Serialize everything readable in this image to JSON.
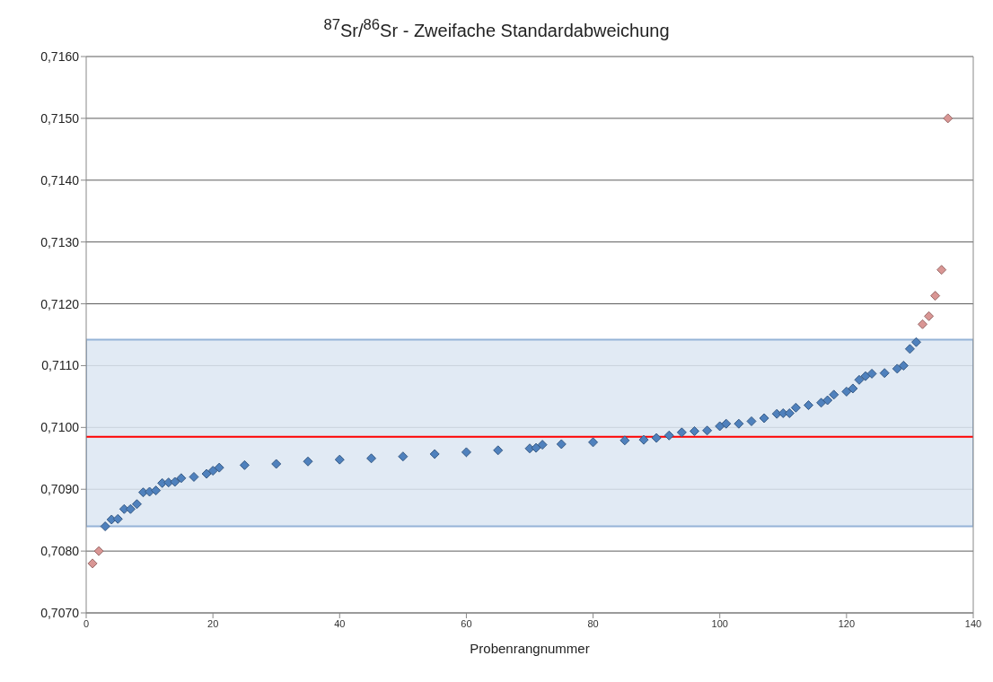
{
  "chart_data": {
    "type": "scatter",
    "title": "$^{87}$Sr/$^{86}$Sr - Zweifache Standardabweichung",
    "xlabel": "Probenrangnummer",
    "marker": "diamond",
    "grid": "y",
    "legend": false,
    "xlim": [
      0,
      140
    ],
    "xticks": [
      0,
      20,
      40,
      60,
      80,
      100,
      120,
      140
    ],
    "ylim": [
      0.707,
      0.716
    ],
    "yticks": [
      {
        "value": 0.707,
        "label": "0,7070"
      },
      {
        "value": 0.708,
        "label": "0,7080"
      },
      {
        "value": 0.709,
        "label": "0,7090"
      },
      {
        "value": 0.71,
        "label": "0,7100"
      },
      {
        "value": 0.711,
        "label": "0,7110"
      },
      {
        "value": 0.712,
        "label": "0,7120"
      },
      {
        "value": 0.713,
        "label": "0,7130"
      },
      {
        "value": 0.714,
        "label": "0,7140"
      },
      {
        "value": 0.715,
        "label": "0,7150"
      },
      {
        "value": 0.716,
        "label": "0,7160"
      }
    ],
    "bands": [
      {
        "axis": "y",
        "from": 0.7084,
        "to": 0.71142,
        "color": "#dce6f2"
      }
    ],
    "ref_lines": [
      {
        "axis": "y",
        "value": 0.70985,
        "color": "#ff0000"
      }
    ],
    "series": [
      {
        "color": "#4f81bd",
        "x": [
          3,
          4,
          5,
          6,
          7,
          8,
          9,
          10,
          11,
          12,
          13,
          14,
          15,
          17,
          19,
          20,
          21,
          25,
          30,
          35,
          40,
          45,
          50,
          55,
          60,
          65,
          70,
          71,
          72,
          75,
          80,
          85,
          88,
          90,
          92,
          94,
          96,
          98,
          100,
          101,
          103,
          105,
          107,
          109,
          110,
          111,
          112,
          114,
          116,
          117,
          118,
          120,
          121,
          122,
          123,
          124,
          126,
          128,
          129,
          130,
          131
        ],
        "values": [
          0.7084,
          0.70851,
          0.70852,
          0.70868,
          0.70868,
          0.70876,
          0.70895,
          0.70896,
          0.70898,
          0.7091,
          0.70911,
          0.70912,
          0.70918,
          0.7092,
          0.70925,
          0.7093,
          0.70935,
          0.70939,
          0.70941,
          0.70945,
          0.70948,
          0.7095,
          0.70953,
          0.70957,
          0.7096,
          0.70963,
          0.70966,
          0.70967,
          0.70972,
          0.70973,
          0.70976,
          0.70979,
          0.7098,
          0.70983,
          0.70987,
          0.70992,
          0.70994,
          0.70995,
          0.71002,
          0.71006,
          0.71006,
          0.7101,
          0.71015,
          0.71022,
          0.71023,
          0.71023,
          0.71032,
          0.71036,
          0.7104,
          0.71044,
          0.71053,
          0.71058,
          0.71063,
          0.71077,
          0.71083,
          0.71087,
          0.71088,
          0.71095,
          0.711,
          0.71127,
          0.71138
        ]
      },
      {
        "color": "#d99694",
        "x": [
          1,
          2,
          132,
          133,
          134,
          135,
          136
        ],
        "values": [
          0.7078,
          0.708,
          0.71167,
          0.7118,
          0.71213,
          0.71255,
          0.715
        ]
      }
    ]
  }
}
